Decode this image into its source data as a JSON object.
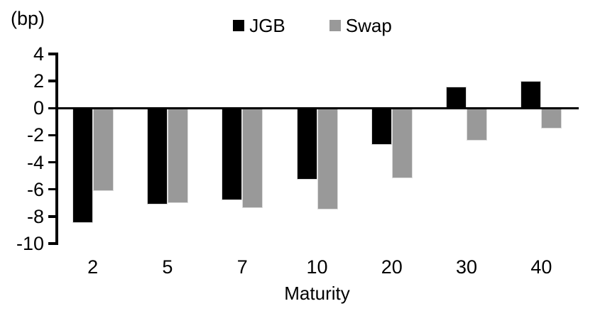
{
  "chart_data": {
    "type": "bar",
    "y_unit": "(bp)",
    "xlabel": "Maturity",
    "categories": [
      "2",
      "5",
      "7",
      "10",
      "20",
      "30",
      "40"
    ],
    "series": [
      {
        "name": "JGB",
        "color": "#000000",
        "values": [
          -8.5,
          -7.1,
          -6.8,
          -5.3,
          -2.7,
          1.6,
          2.0
        ]
      },
      {
        "name": "Swap",
        "color": "#999999",
        "values": [
          -6.1,
          -7.0,
          -7.4,
          -7.5,
          -5.2,
          -2.4,
          -1.5
        ]
      }
    ],
    "ylim": [
      -10,
      4
    ],
    "yticks": [
      4,
      2,
      0,
      -2,
      -4,
      -6,
      -8,
      -10
    ],
    "grid": false,
    "legend_position": "top-center",
    "baseline": 0
  }
}
